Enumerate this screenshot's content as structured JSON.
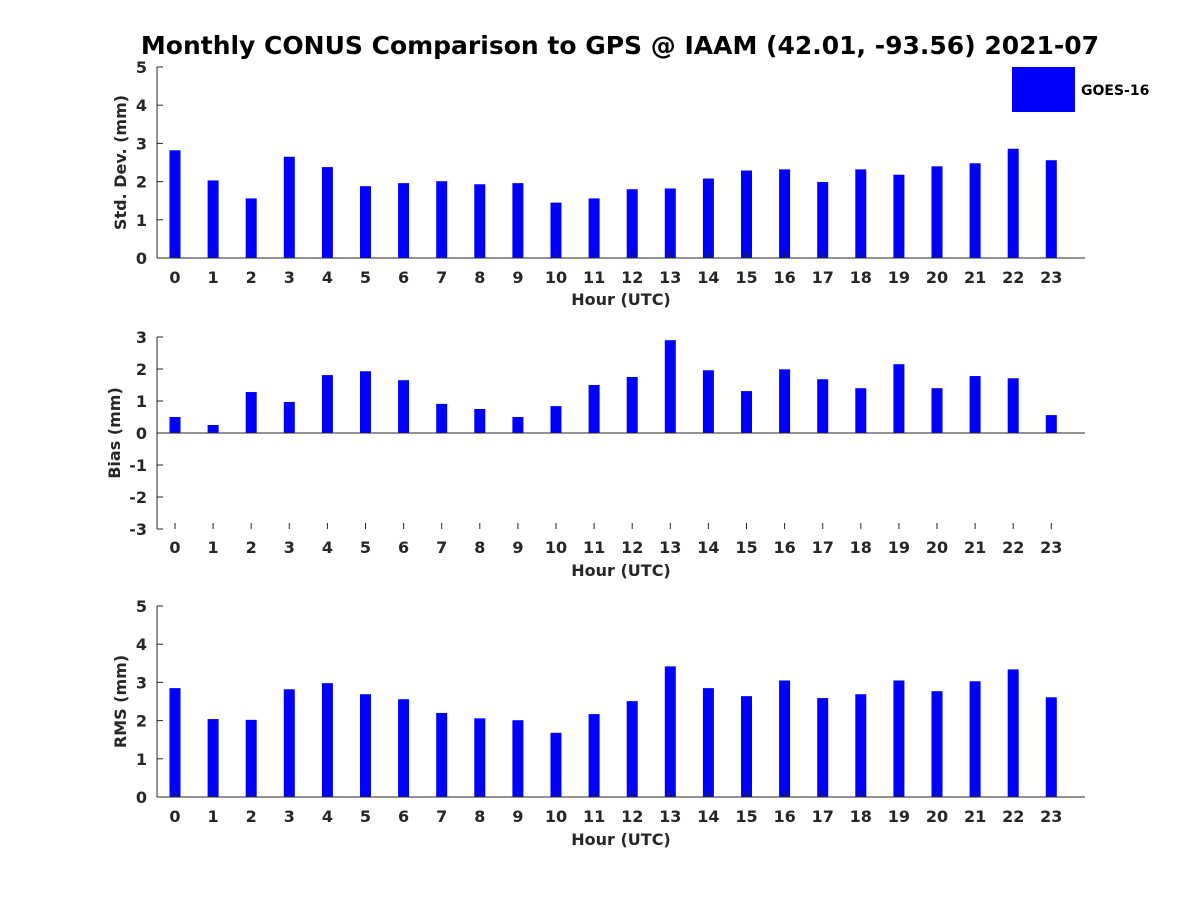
{
  "title": "Monthly CONUS Comparison to GPS @ IAAM (42.01, -93.56) 2021-07",
  "legend": {
    "label": "GOES-16",
    "color": "#0000ff"
  },
  "chart_data": [
    {
      "type": "bar",
      "name": "std-dev",
      "series_name": "GOES-16",
      "color": "#0000ff",
      "xlabel": "Hour (UTC)",
      "ylabel": "Std. Dev. (mm)",
      "ylim": [
        0,
        5
      ],
      "yticks": [
        "0",
        "1",
        "2",
        "3",
        "4",
        "5"
      ],
      "categories": [
        "0",
        "1",
        "2",
        "3",
        "4",
        "5",
        "6",
        "7",
        "8",
        "9",
        "10",
        "11",
        "12",
        "13",
        "14",
        "15",
        "16",
        "17",
        "18",
        "19",
        "20",
        "21",
        "22",
        "23"
      ],
      "values": [
        2.82,
        2.03,
        1.56,
        2.65,
        2.38,
        1.88,
        1.96,
        2.01,
        1.93,
        1.96,
        1.45,
        1.56,
        1.8,
        1.82,
        2.08,
        2.29,
        2.32,
        1.99,
        2.32,
        2.18,
        2.4,
        2.48,
        2.86,
        2.56
      ]
    },
    {
      "type": "bar",
      "name": "bias",
      "series_name": "GOES-16",
      "color": "#0000ff",
      "xlabel": "Hour (UTC)",
      "ylabel": "Bias (mm)",
      "ylim": [
        -3,
        3
      ],
      "yticks": [
        "-3",
        "-2",
        "-1",
        "0",
        "1",
        "2",
        "3"
      ],
      "categories": [
        "0",
        "1",
        "2",
        "3",
        "4",
        "5",
        "6",
        "7",
        "8",
        "9",
        "10",
        "11",
        "12",
        "13",
        "14",
        "15",
        "16",
        "17",
        "18",
        "19",
        "20",
        "21",
        "22",
        "23"
      ],
      "values": [
        0.5,
        0.25,
        1.28,
        0.97,
        1.81,
        1.93,
        1.65,
        0.91,
        0.75,
        0.5,
        0.84,
        1.5,
        1.75,
        2.9,
        1.96,
        1.31,
        1.99,
        1.68,
        1.4,
        2.15,
        1.4,
        1.78,
        1.71,
        0.56
      ]
    },
    {
      "type": "bar",
      "name": "rms",
      "series_name": "GOES-16",
      "color": "#0000ff",
      "xlabel": "Hour (UTC)",
      "ylabel": "RMS (mm)",
      "ylim": [
        0,
        5
      ],
      "yticks": [
        "0",
        "1",
        "2",
        "3",
        "4",
        "5"
      ],
      "categories": [
        "0",
        "1",
        "2",
        "3",
        "4",
        "5",
        "6",
        "7",
        "8",
        "9",
        "10",
        "11",
        "12",
        "13",
        "14",
        "15",
        "16",
        "17",
        "18",
        "19",
        "20",
        "21",
        "22",
        "23"
      ],
      "values": [
        2.85,
        2.04,
        2.02,
        2.82,
        2.98,
        2.69,
        2.56,
        2.2,
        2.06,
        2.01,
        1.68,
        2.17,
        2.51,
        3.42,
        2.85,
        2.64,
        3.05,
        2.59,
        2.69,
        3.05,
        2.77,
        3.03,
        3.34,
        2.61
      ]
    }
  ]
}
